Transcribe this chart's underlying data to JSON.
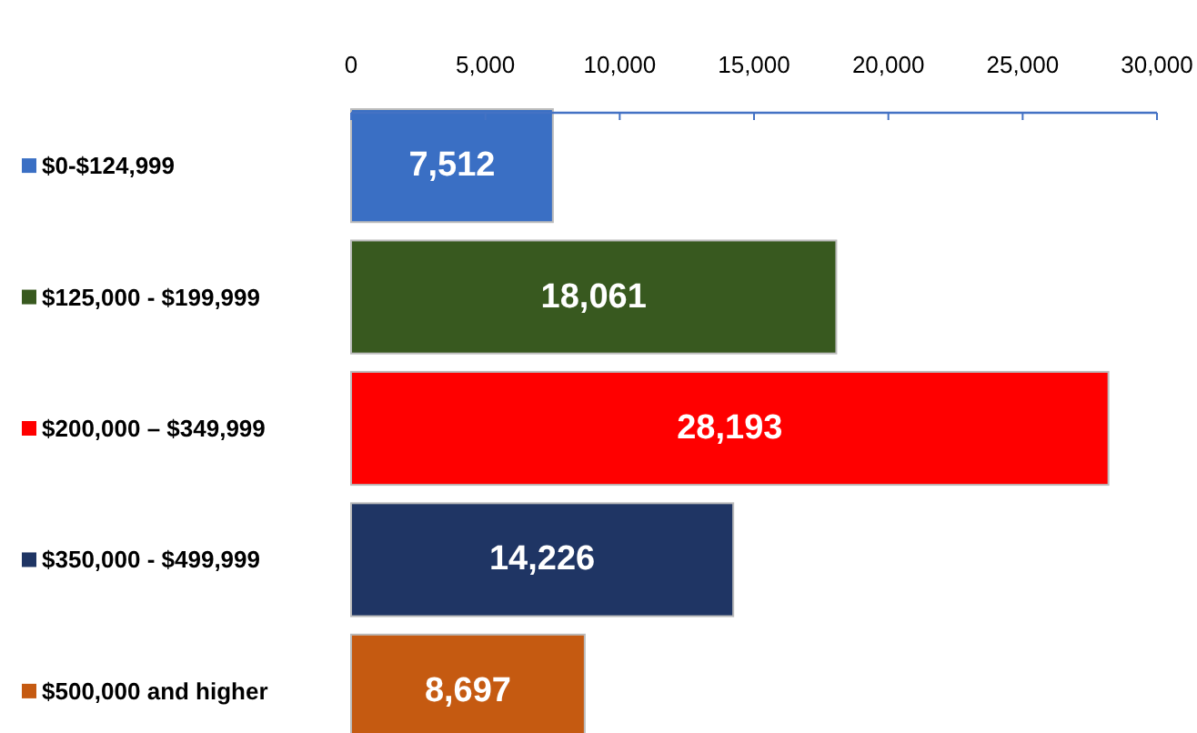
{
  "chart_data": {
    "type": "bar",
    "orientation": "horizontal",
    "categories": [
      "$0-$124,999",
      "$125,000 - $199,999",
      "$200,000 – $349,999",
      "$350,000 - $499,999",
      "$500,000 and higher"
    ],
    "values": [
      7512,
      18061,
      28193,
      14226,
      8697
    ],
    "colors": [
      "#3a6fc4",
      "#38591f",
      "#ff0000",
      "#1f3564",
      "#c55a11"
    ],
    "xlim": [
      0,
      30000
    ],
    "xticks": [
      0,
      {
        "value": 5000,
        "label": "5,000"
      },
      {
        "value": 10000,
        "label": "10,000"
      },
      {
        "value": 15000,
        "label": "15,000"
      },
      {
        "value": 20000,
        "label": "20,000"
      },
      {
        "value": 25000,
        "label": "25,000"
      },
      {
        "value": 30000,
        "label": "30,000"
      }
    ],
    "value_labels": [
      "7,512",
      "18,061",
      "28,193",
      "14,226",
      "8,697"
    ],
    "grid": false
  }
}
